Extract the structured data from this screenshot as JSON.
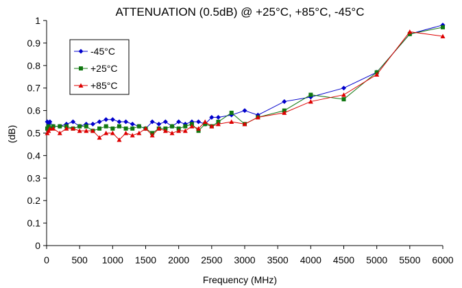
{
  "chart_data": {
    "type": "line",
    "title": "ATTENUATION (0.5dB)  @ +25°C, +85°C, -45°C",
    "xlabel": "Frequency (MHz)",
    "ylabel": "(dB)",
    "xlim": [
      0,
      6000
    ],
    "ylim": [
      0,
      1
    ],
    "xticks": [
      0,
      500,
      1000,
      1500,
      2000,
      2500,
      3000,
      3500,
      4000,
      4500,
      5000,
      5500,
      6000
    ],
    "yticks": [
      0,
      0.1,
      0.2,
      0.3,
      0.4,
      0.5,
      0.6,
      0.7,
      0.8,
      0.9,
      1
    ],
    "ytick_labels": [
      "0",
      "0.1",
      "0.2",
      "0.3",
      "0.4",
      "0.5",
      "0.6",
      "0.7",
      "0.8",
      "0.9",
      "1"
    ],
    "grid": false,
    "legend_position": "top-left",
    "series": [
      {
        "name": "-45°C",
        "color": "#0000cc",
        "marker": "diamond",
        "x": [
          10,
          30,
          50,
          100,
          200,
          300,
          400,
          500,
          600,
          700,
          800,
          900,
          1000,
          1100,
          1200,
          1300,
          1400,
          1500,
          1600,
          1700,
          1800,
          1900,
          2000,
          2100,
          2200,
          2300,
          2400,
          2500,
          2600,
          2800,
          3000,
          3200,
          3600,
          4000,
          4500,
          5000,
          5500,
          6000
        ],
        "y": [
          0.55,
          0.54,
          0.55,
          0.53,
          0.53,
          0.54,
          0.55,
          0.53,
          0.54,
          0.54,
          0.55,
          0.56,
          0.56,
          0.55,
          0.55,
          0.54,
          0.53,
          0.52,
          0.55,
          0.54,
          0.55,
          0.53,
          0.55,
          0.54,
          0.55,
          0.55,
          0.54,
          0.57,
          0.57,
          0.58,
          0.6,
          0.58,
          0.64,
          0.66,
          0.7,
          0.77,
          0.94,
          0.98
        ]
      },
      {
        "name": "+25°C",
        "color": "#117711",
        "marker": "square",
        "x": [
          10,
          30,
          50,
          100,
          200,
          300,
          400,
          500,
          600,
          700,
          800,
          900,
          1000,
          1100,
          1200,
          1300,
          1400,
          1500,
          1600,
          1700,
          1800,
          1900,
          2000,
          2100,
          2200,
          2300,
          2400,
          2500,
          2600,
          2800,
          3000,
          3200,
          3600,
          4000,
          4500,
          5000,
          5500,
          6000
        ],
        "y": [
          0.52,
          0.53,
          0.52,
          0.53,
          0.53,
          0.53,
          0.52,
          0.53,
          0.53,
          0.51,
          0.52,
          0.53,
          0.52,
          0.53,
          0.52,
          0.52,
          0.53,
          0.52,
          0.5,
          0.52,
          0.52,
          0.53,
          0.52,
          0.53,
          0.54,
          0.51,
          0.54,
          0.53,
          0.55,
          0.59,
          0.54,
          0.57,
          0.6,
          0.67,
          0.65,
          0.77,
          0.94,
          0.97
        ]
      },
      {
        "name": "+85°C",
        "color": "#dd0000",
        "marker": "triangle",
        "x": [
          10,
          30,
          50,
          100,
          200,
          300,
          400,
          500,
          600,
          700,
          800,
          900,
          1000,
          1100,
          1200,
          1300,
          1400,
          1500,
          1600,
          1700,
          1800,
          1900,
          2000,
          2100,
          2200,
          2300,
          2400,
          2500,
          2600,
          2800,
          3000,
          3200,
          3600,
          4000,
          4500,
          5000,
          5500,
          6000
        ],
        "y": [
          0.5,
          0.51,
          0.52,
          0.52,
          0.5,
          0.52,
          0.52,
          0.51,
          0.51,
          0.51,
          0.48,
          0.5,
          0.5,
          0.47,
          0.5,
          0.49,
          0.5,
          0.52,
          0.49,
          0.52,
          0.51,
          0.5,
          0.51,
          0.51,
          0.53,
          0.52,
          0.55,
          0.53,
          0.54,
          0.55,
          0.54,
          0.57,
          0.59,
          0.64,
          0.67,
          0.76,
          0.95,
          0.93
        ]
      }
    ]
  }
}
